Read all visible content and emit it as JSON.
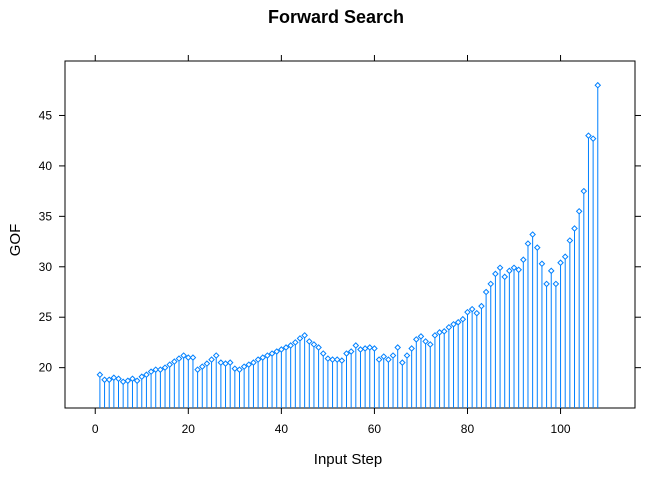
{
  "chart_data": {
    "type": "bar",
    "title": "Forward Search",
    "xlabel": "Input Step",
    "ylabel": "GOF",
    "xlim": [
      -6.5,
      116
    ],
    "ylim": [
      16.0,
      50.4
    ],
    "x_ticks": [
      0,
      20,
      40,
      60,
      80,
      100
    ],
    "y_ticks": [
      20,
      25,
      30,
      35,
      40,
      45
    ],
    "grid": false,
    "legend": "none",
    "color": "#0080ff",
    "marker": "diamond-open",
    "x": [
      1,
      2,
      3,
      4,
      5,
      6,
      7,
      8,
      9,
      10,
      11,
      12,
      13,
      14,
      15,
      16,
      17,
      18,
      19,
      20,
      21,
      22,
      23,
      24,
      25,
      26,
      27,
      28,
      29,
      30,
      31,
      32,
      33,
      34,
      35,
      36,
      37,
      38,
      39,
      40,
      41,
      42,
      43,
      44,
      45,
      46,
      47,
      48,
      49,
      50,
      51,
      52,
      53,
      54,
      55,
      56,
      57,
      58,
      59,
      60,
      61,
      62,
      63,
      64,
      65,
      66,
      67,
      68,
      69,
      70,
      71,
      72,
      73,
      74,
      75,
      76,
      77,
      78,
      79,
      80,
      81,
      82,
      83,
      84,
      85,
      86,
      87,
      88,
      89,
      90,
      91,
      92,
      93,
      94,
      95,
      96,
      97,
      98,
      99,
      100,
      101,
      102,
      103,
      104,
      105,
      106,
      107,
      108
    ],
    "values": [
      19.3,
      18.8,
      18.8,
      19.0,
      18.9,
      18.6,
      18.7,
      18.9,
      18.7,
      19.1,
      19.3,
      19.6,
      19.8,
      19.8,
      20.0,
      20.3,
      20.6,
      20.9,
      21.2,
      21.0,
      21.0,
      19.8,
      20.1,
      20.4,
      20.8,
      21.2,
      20.5,
      20.4,
      20.5,
      19.9,
      19.8,
      20.1,
      20.3,
      20.5,
      20.8,
      21.0,
      21.2,
      21.4,
      21.6,
      21.8,
      22.0,
      22.2,
      22.5,
      22.9,
      23.2,
      22.6,
      22.3,
      22.0,
      21.4,
      20.9,
      20.8,
      20.8,
      20.7,
      21.4,
      21.6,
      22.2,
      21.8,
      21.9,
      22.0,
      21.9,
      20.8,
      21.1,
      20.8,
      21.2,
      22.0,
      20.5,
      21.2,
      21.9,
      22.8,
      23.1,
      22.6,
      22.3,
      23.2,
      23.5,
      23.6,
      24.0,
      24.3,
      24.5,
      24.8,
      25.5,
      25.8,
      25.4,
      26.1,
      27.5,
      28.3,
      29.3,
      29.9,
      29.0,
      29.6,
      29.9,
      29.7,
      30.7,
      32.3,
      33.2,
      31.9,
      30.3,
      28.3,
      29.6,
      28.3,
      30.4,
      31.0,
      32.6,
      33.8,
      35.5,
      37.5,
      43.0,
      42.7,
      48.0
    ]
  }
}
